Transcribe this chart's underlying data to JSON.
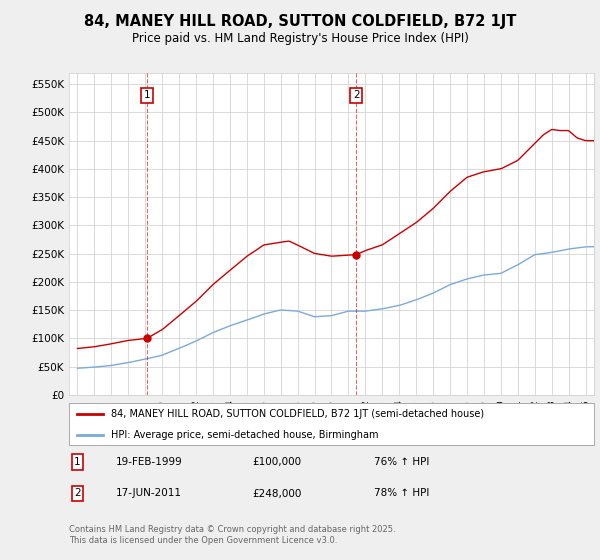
{
  "title": "84, MANEY HILL ROAD, SUTTON COLDFIELD, B72 1JT",
  "subtitle": "Price paid vs. HM Land Registry's House Price Index (HPI)",
  "legend_label_red": "84, MANEY HILL ROAD, SUTTON COLDFIELD, B72 1JT (semi-detached house)",
  "legend_label_blue": "HPI: Average price, semi-detached house, Birmingham",
  "footer": "Contains HM Land Registry data © Crown copyright and database right 2025.\nThis data is licensed under the Open Government Licence v3.0.",
  "transaction1": {
    "label": "1",
    "date": "19-FEB-1999",
    "price": 100000,
    "hpi_pct": "76% ↑ HPI",
    "x": 1999.12
  },
  "transaction2": {
    "label": "2",
    "date": "17-JUN-2011",
    "price": 248000,
    "hpi_pct": "78% ↑ HPI",
    "x": 2011.46
  },
  "ylim": [
    0,
    570000
  ],
  "xlim": [
    1994.5,
    2025.5
  ],
  "yticks": [
    0,
    50000,
    100000,
    150000,
    200000,
    250000,
    300000,
    350000,
    400000,
    450000,
    500000,
    550000
  ],
  "background_color": "#efefef",
  "plot_background": "#ffffff",
  "red_color": "#cc0000",
  "blue_color": "#7aaadd",
  "grid_color": "#cccccc",
  "title_color": "#000000"
}
